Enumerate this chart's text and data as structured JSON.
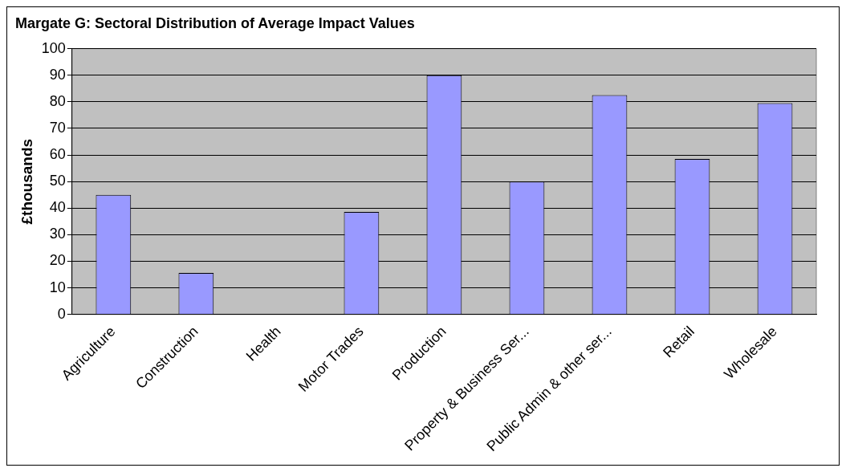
{
  "chart_data": {
    "type": "bar",
    "title": "Margate G: Sectoral Distribution of Average Impact Values",
    "ylabel": "£thousands",
    "categories": [
      "Agriculture",
      "Construction",
      "Health",
      "Motor Trades",
      "Production",
      "Property & Business Ser...",
      "Public Admin & other ser...",
      "Retail",
      "Wholesale"
    ],
    "values": [
      45,
      15.6,
      0,
      38.6,
      90,
      50,
      82.5,
      58.5,
      79.5
    ],
    "color": "#9999ff",
    "ylim": [
      0,
      100
    ],
    "yticks": [
      0,
      10,
      20,
      30,
      40,
      50,
      60,
      70,
      80,
      90,
      100
    ],
    "grid": "y",
    "legend": false
  }
}
